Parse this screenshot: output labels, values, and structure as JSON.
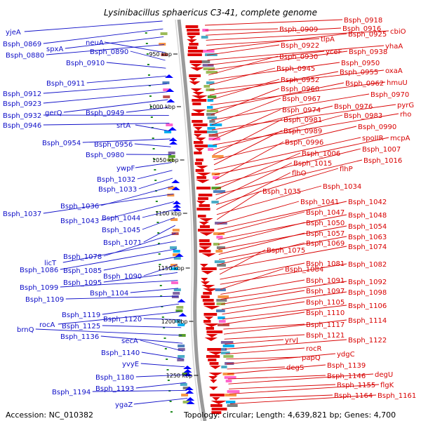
{
  "title": "Lysinibacillus sphaericus C3-41, complete genome",
  "footer": {
    "accession": "Accession: NC_010382",
    "topology": "Topology: circular; Length: 4,639,821 bp; Genes: 4,700"
  },
  "kbp_ticks": [
    "950 kbp",
    "1000 kbp",
    "1050 kbp",
    "1100 kbp",
    "1150 kbp",
    "1200 kbp",
    "1250 kbp"
  ],
  "colors": {
    "left_labels": "#1010c8",
    "right_labels": "#d80000",
    "backbone": "#808080",
    "forward_features": "#0000ff",
    "reverse_features": "#e00000",
    "ticks": "#1e8a1e"
  },
  "left_labels": [
    "yjeA",
    "Bsph_0869",
    "spxA",
    "Bsph_0880",
    "neuA",
    "Bsph_0890",
    "Bsph_0910",
    "Bsph_0911",
    "Bsph_0912",
    "Bsph_0923",
    "gerQ",
    "Bsph_0949",
    "Bsph_0932",
    "Bsph_0946",
    "srtA",
    "Bsph_0954",
    "Bsph_0956",
    "Bsph_0980",
    "ywpF",
    "Bsph_1032",
    "Bsph_1033",
    "Bsph_1036",
    "Bsph_1037",
    "Bsph_1043",
    "Bsph_1044",
    "Bsph_1045",
    "Bsph_1071",
    "Bsph_1078",
    "licT",
    "Bsph_1086",
    "Bsph_1085",
    "Bsph_1090",
    "Bsph_1095",
    "Bsph_1099",
    "Bsph_1104",
    "Bsph_1109",
    "Bsph_1119",
    "rocA",
    "Bsph_1120",
    "Bsph_1125",
    "brnQ",
    "Bsph_1136",
    "secA",
    "Bsph_1140",
    "yvyE",
    "Bsph_1180",
    "Bsph_1193",
    "Bsph_1194",
    "ygaZ"
  ],
  "right_labels": [
    "Bsph_0918",
    "Bsph_0909",
    "Bsph_0916",
    "cbiO",
    "tlpA",
    "Bsph_0925",
    "Bsph_0922",
    "yhaA",
    "yceF",
    "Bsph_0938",
    "Bsph_0930",
    "Bsph_0950",
    "Bsph_0945",
    "oxaA",
    "Bsph_0955",
    "Bsph_0952",
    "hmuU",
    "Bsph_0962",
    "Bsph_0960",
    "Bsph_0970",
    "Bsph_0967",
    "pyrG",
    "Bsph_0976",
    "Bsph_0974",
    "rho",
    "Bsph_0983",
    "Bsph_0981",
    "Bsph_0990",
    "Bsph_0989",
    "spoIIR",
    "mcpA",
    "Bsph_0996",
    "Bsph_1007",
    "Bsph_1006",
    "Bsph_1016",
    "Bsph_1015",
    "flhP",
    "flhO",
    "Bsph_1034",
    "Bsph_1035",
    "Bsph_1041",
    "Bsph_1042",
    "Bsph_1047",
    "Bsph_1048",
    "Bsph_1050",
    "Bsph_1054",
    "Bsph_1057",
    "Bsph_1063",
    "Bsph_1069",
    "Bsph_1074",
    "Bsph_1075",
    "Bsph_1081",
    "Bsph_1082",
    "Bsph_1084",
    "Bsph_1091",
    "Bsph_1092",
    "Bsph_1097",
    "Bsph_1098",
    "Bsph_1105",
    "Bsph_1106",
    "Bsph_1110",
    "Bsph_1117",
    "Bsph_1114",
    "Bsph_1121",
    "yrvJ",
    "Bsph_1122",
    "rocR",
    "papQ",
    "ydgC",
    "degS",
    "Bsph_1139",
    "Bsph_1146",
    "degU",
    "Bsph_1155",
    "flgK",
    "Bsph_1164",
    "Bsph_1161"
  ]
}
